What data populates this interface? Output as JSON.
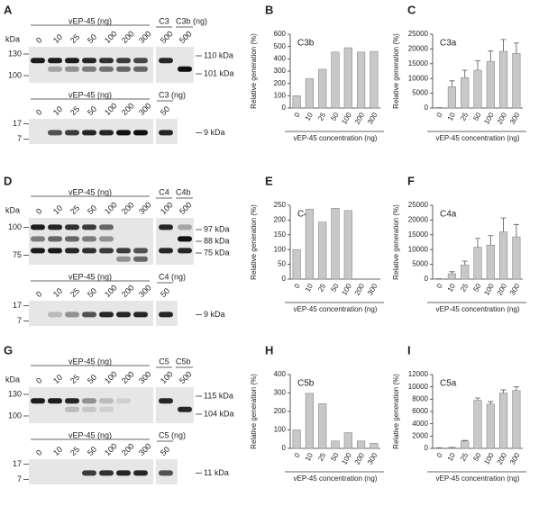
{
  "blots": [
    {
      "letter": "A",
      "kda": "kDa",
      "top": {
        "group": "vEP-45 (ng)",
        "lanes": [
          "0",
          "10",
          "25",
          "50",
          "100",
          "200",
          "300"
        ],
        "extras": [
          "C3",
          "C3b (ng)"
        ],
        "extra_lanes": [
          "500",
          "500"
        ],
        "markers": [
          "130",
          "100"
        ],
        "bands": [
          "110 kDa",
          "101 kDa"
        ]
      },
      "bottom": {
        "group": "vEP-45 (ng)",
        "lanes": [
          "0",
          "10",
          "25",
          "50",
          "100",
          "200",
          "300"
        ],
        "extras": [
          "C3 (ng)"
        ],
        "extra_lanes": [
          "50"
        ],
        "markers": [
          "17",
          "7"
        ],
        "bands": [
          "9 kDa"
        ]
      }
    },
    {
      "letter": "D",
      "kda": "kDa",
      "top": {
        "group": "vEP-45 (ng)",
        "lanes": [
          "0",
          "10",
          "25",
          "50",
          "100",
          "200",
          "300"
        ],
        "extras": [
          "C4",
          "C4b"
        ],
        "extra_lanes": [
          "100",
          "500"
        ],
        "markers": [
          "100",
          "75"
        ],
        "bands": [
          "97 kDa",
          "88 kDa",
          "75 kDa"
        ]
      },
      "bottom": {
        "group": "vEP-45 (ng)",
        "lanes": [
          "0",
          "10",
          "25",
          "50",
          "100",
          "200",
          "300"
        ],
        "extras": [
          "C4 (ng)"
        ],
        "extra_lanes": [
          "50"
        ],
        "markers": [
          "17",
          "7"
        ],
        "bands": [
          "9 kDa"
        ]
      }
    },
    {
      "letter": "G",
      "kda": "kDa",
      "top": {
        "group": "vEP-45 (ng)",
        "lanes": [
          "0",
          "10",
          "25",
          "50",
          "100",
          "200",
          "300"
        ],
        "extras": [
          "C5",
          "C5b"
        ],
        "extra_lanes": [
          "100",
          "500"
        ],
        "markers": [
          "130",
          "100"
        ],
        "bands": [
          "115 kDa",
          "104 kDa"
        ]
      },
      "bottom": {
        "group": "vEP-45 (ng)",
        "lanes": [
          "0",
          "10",
          "25",
          "50",
          "100",
          "200",
          "300"
        ],
        "extras": [
          "C5 (ng)"
        ],
        "extra_lanes": [
          "50"
        ],
        "markers": [
          "17",
          "7"
        ],
        "bands": [
          "11 kDa"
        ]
      }
    }
  ],
  "chart_data": [
    {
      "type": "bar",
      "letter": "B",
      "title": "C3b",
      "ylabel": "Relative generation (%)",
      "xlabel": "vEP-45 concentration (ng)",
      "categories": [
        "0",
        "10",
        "25",
        "50",
        "100",
        "200",
        "300"
      ],
      "values": [
        100,
        240,
        315,
        455,
        490,
        455,
        460
      ],
      "color": "#c8c8c8",
      "ylim": [
        0,
        600
      ],
      "yticks": [
        0,
        100,
        200,
        300,
        400,
        500,
        600
      ]
    },
    {
      "type": "bar",
      "letter": "C",
      "title": "C3a",
      "ylabel": "Relative generation (%)",
      "xlabel": "vEP-45 concentration (ng)",
      "categories": [
        "0",
        "10",
        "25",
        "50",
        "100",
        "200",
        "300"
      ],
      "values": [
        100,
        7200,
        10300,
        12800,
        15800,
        19200,
        18500
      ],
      "errors": [
        0,
        2000,
        2500,
        3200,
        3500,
        4000,
        3500
      ],
      "color": "#c8c8c8",
      "ylim": [
        0,
        25000
      ],
      "yticks": [
        0,
        5000,
        10000,
        15000,
        20000,
        25000
      ]
    },
    {
      "type": "bar",
      "letter": "E",
      "title": "C4b",
      "ylabel": "Relative generation (%)",
      "xlabel": "vEP-45 concentration (ng)",
      "categories": [
        "0",
        "10",
        "25",
        "50",
        "100",
        "200",
        "300"
      ],
      "values": [
        100,
        237,
        193,
        240,
        232,
        0,
        0
      ],
      "color": "#c8c8c8",
      "ylim": [
        0,
        250
      ],
      "yticks": [
        0,
        50,
        100,
        150,
        200,
        250
      ]
    },
    {
      "type": "bar",
      "letter": "F",
      "title": "C4a",
      "ylabel": "Relative generation (%)",
      "xlabel": "vEP-45 concentration (ng)",
      "categories": [
        "0",
        "10",
        "25",
        "50",
        "100",
        "200",
        "300"
      ],
      "values": [
        100,
        1800,
        4800,
        10800,
        11500,
        16000,
        14300
      ],
      "errors": [
        0,
        700,
        1300,
        3000,
        3200,
        4700,
        4200
      ],
      "color": "#c8c8c8",
      "ylim": [
        0,
        25000
      ],
      "yticks": [
        0,
        5000,
        10000,
        15000,
        20000,
        25000
      ]
    },
    {
      "type": "bar",
      "letter": "H",
      "title": "C5b",
      "ylabel": "Relative generation (%)",
      "xlabel": "vEP-45 concentration (ng)",
      "categories": [
        "0",
        "10",
        "25",
        "50",
        "100",
        "200",
        "300"
      ],
      "values": [
        100,
        298,
        242,
        40,
        85,
        40,
        28
      ],
      "color": "#c8c8c8",
      "ylim": [
        0,
        400
      ],
      "yticks": [
        0,
        100,
        200,
        300,
        400
      ]
    },
    {
      "type": "bar",
      "letter": "I",
      "title": "C5a",
      "ylabel": "Relative generation (%)",
      "xlabel": "vEP-45 concentration (ng)",
      "categories": [
        "0",
        "10",
        "25",
        "50",
        "100",
        "200",
        "300"
      ],
      "values": [
        100,
        150,
        1200,
        7800,
        7200,
        9000,
        9400
      ],
      "errors": [
        0,
        0,
        100,
        400,
        400,
        500,
        600
      ],
      "color": "#c8c8c8",
      "ylim": [
        0,
        12000
      ],
      "yticks": [
        0,
        2000,
        4000,
        6000,
        8000,
        10000,
        12000
      ]
    }
  ]
}
